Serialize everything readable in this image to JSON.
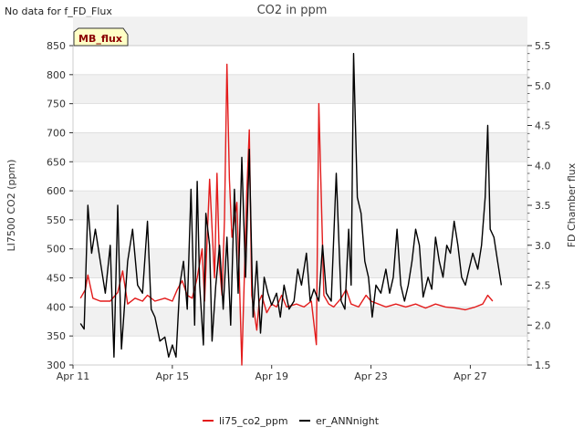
{
  "note": "No data for f_FD_Flux",
  "badge": "MB_flux",
  "colors": {
    "band": "#f1f1f1",
    "grid": "#dcdcdc",
    "series1": "#e31b1b",
    "series2": "#000000",
    "badge_fill": "#ffffc6",
    "badge_text": "#8b0000"
  },
  "chart_data": {
    "type": "line",
    "title": "CO2 in ppm",
    "ylabel": "LI7500 CO2 (ppm)",
    "y2label": "FD Chamber flux",
    "xlim": [
      11,
      29.3
    ],
    "ylim": [
      300,
      850
    ],
    "y2lim": [
      1.5,
      5.5
    ],
    "xticks": [
      {
        "label": "Apr 11",
        "value": 11
      },
      {
        "label": "Apr 15",
        "value": 15
      },
      {
        "label": "Apr 19",
        "value": 19
      },
      {
        "label": "Apr 23",
        "value": 23
      },
      {
        "label": "Apr 27",
        "value": 27
      }
    ],
    "yticks": [
      300,
      350,
      400,
      450,
      500,
      550,
      600,
      650,
      700,
      750,
      800,
      850
    ],
    "y2ticks": [
      "1.5",
      "2.0",
      "2.5",
      "3.0",
      "3.5",
      "4.0",
      "4.5",
      "5.0",
      "5.5"
    ],
    "legend": {
      "placement": "bottom-center"
    },
    "series": [
      {
        "name": "li75_co2_ppm",
        "axis": "left",
        "color": "#e31b1b",
        "points": [
          [
            11.3,
            415
          ],
          [
            11.5,
            430
          ],
          [
            11.6,
            455
          ],
          [
            11.8,
            415
          ],
          [
            12.1,
            410
          ],
          [
            12.5,
            410
          ],
          [
            12.8,
            425
          ],
          [
            13.0,
            462
          ],
          [
            13.2,
            405
          ],
          [
            13.5,
            415
          ],
          [
            13.8,
            410
          ],
          [
            14.0,
            420
          ],
          [
            14.3,
            410
          ],
          [
            14.7,
            415
          ],
          [
            15.0,
            410
          ],
          [
            15.2,
            430
          ],
          [
            15.4,
            445
          ],
          [
            15.6,
            420
          ],
          [
            15.8,
            415
          ],
          [
            16.0,
            450
          ],
          [
            16.2,
            500
          ],
          [
            16.3,
            410
          ],
          [
            16.5,
            620
          ],
          [
            16.7,
            450
          ],
          [
            16.8,
            630
          ],
          [
            16.9,
            470
          ],
          [
            17.0,
            420
          ],
          [
            17.1,
            550
          ],
          [
            17.2,
            818
          ],
          [
            17.3,
            620
          ],
          [
            17.4,
            520
          ],
          [
            17.6,
            580
          ],
          [
            17.7,
            450
          ],
          [
            17.8,
            300
          ],
          [
            18.0,
            600
          ],
          [
            18.1,
            705
          ],
          [
            18.2,
            420
          ],
          [
            18.4,
            360
          ],
          [
            18.5,
            410
          ],
          [
            18.6,
            420
          ],
          [
            18.8,
            390
          ],
          [
            19.0,
            405
          ],
          [
            19.2,
            400
          ],
          [
            19.4,
            420
          ],
          [
            19.6,
            400
          ],
          [
            20.0,
            405
          ],
          [
            20.3,
            400
          ],
          [
            20.6,
            410
          ],
          [
            20.8,
            335
          ],
          [
            20.9,
            750
          ],
          [
            21.1,
            420
          ],
          [
            21.3,
            405
          ],
          [
            21.5,
            400
          ],
          [
            21.8,
            415
          ],
          [
            22.0,
            430
          ],
          [
            22.2,
            405
          ],
          [
            22.5,
            400
          ],
          [
            22.8,
            420
          ],
          [
            23.0,
            410
          ],
          [
            23.3,
            405
          ],
          [
            23.6,
            400
          ],
          [
            24.0,
            405
          ],
          [
            24.4,
            400
          ],
          [
            24.8,
            405
          ],
          [
            25.2,
            398
          ],
          [
            25.6,
            405
          ],
          [
            26.0,
            400
          ],
          [
            26.4,
            398
          ],
          [
            26.8,
            395
          ],
          [
            27.2,
            400
          ],
          [
            27.5,
            405
          ],
          [
            27.7,
            420
          ],
          [
            27.9,
            410
          ]
        ]
      },
      {
        "name": "er_ANNnight",
        "axis": "right",
        "color": "#000000",
        "points": [
          [
            11.3,
            2.02
          ],
          [
            11.45,
            1.95
          ],
          [
            11.6,
            3.5
          ],
          [
            11.75,
            2.9
          ],
          [
            11.9,
            3.2
          ],
          [
            12.1,
            2.8
          ],
          [
            12.3,
            2.4
          ],
          [
            12.5,
            3.0
          ],
          [
            12.65,
            1.6
          ],
          [
            12.8,
            3.5
          ],
          [
            12.95,
            1.7
          ],
          [
            13.2,
            2.8
          ],
          [
            13.4,
            3.2
          ],
          [
            13.6,
            2.5
          ],
          [
            13.8,
            2.4
          ],
          [
            14.0,
            3.3
          ],
          [
            14.15,
            2.2
          ],
          [
            14.3,
            2.1
          ],
          [
            14.5,
            1.8
          ],
          [
            14.7,
            1.85
          ],
          [
            14.85,
            1.6
          ],
          [
            15.0,
            1.75
          ],
          [
            15.15,
            1.6
          ],
          [
            15.3,
            2.5
          ],
          [
            15.45,
            2.8
          ],
          [
            15.6,
            2.2
          ],
          [
            15.75,
            3.7
          ],
          [
            15.9,
            2.0
          ],
          [
            16.0,
            3.8
          ],
          [
            16.1,
            2.5
          ],
          [
            16.25,
            1.75
          ],
          [
            16.35,
            3.4
          ],
          [
            16.5,
            3.0
          ],
          [
            16.6,
            1.8
          ],
          [
            16.75,
            2.5
          ],
          [
            16.9,
            3.0
          ],
          [
            17.05,
            2.2
          ],
          [
            17.2,
            3.1
          ],
          [
            17.35,
            2.0
          ],
          [
            17.5,
            3.7
          ],
          [
            17.65,
            2.4
          ],
          [
            17.8,
            4.1
          ],
          [
            17.95,
            2.6
          ],
          [
            18.1,
            4.2
          ],
          [
            18.25,
            2.1
          ],
          [
            18.4,
            2.8
          ],
          [
            18.55,
            1.9
          ],
          [
            18.7,
            2.6
          ],
          [
            18.85,
            2.4
          ],
          [
            19.0,
            2.25
          ],
          [
            19.2,
            2.4
          ],
          [
            19.35,
            2.1
          ],
          [
            19.5,
            2.5
          ],
          [
            19.7,
            2.2
          ],
          [
            19.9,
            2.3
          ],
          [
            20.05,
            2.7
          ],
          [
            20.2,
            2.5
          ],
          [
            20.4,
            2.9
          ],
          [
            20.55,
            2.3
          ],
          [
            20.7,
            2.45
          ],
          [
            20.9,
            2.3
          ],
          [
            21.05,
            3.0
          ],
          [
            21.2,
            2.4
          ],
          [
            21.4,
            2.3
          ],
          [
            21.6,
            3.9
          ],
          [
            21.8,
            2.3
          ],
          [
            21.95,
            2.2
          ],
          [
            22.1,
            3.2
          ],
          [
            22.2,
            2.5
          ],
          [
            22.3,
            5.4
          ],
          [
            22.45,
            3.6
          ],
          [
            22.6,
            3.4
          ],
          [
            22.75,
            2.8
          ],
          [
            22.9,
            2.6
          ],
          [
            23.05,
            2.1
          ],
          [
            23.2,
            2.5
          ],
          [
            23.4,
            2.4
          ],
          [
            23.6,
            2.7
          ],
          [
            23.75,
            2.4
          ],
          [
            23.9,
            2.6
          ],
          [
            24.05,
            3.2
          ],
          [
            24.2,
            2.5
          ],
          [
            24.35,
            2.3
          ],
          [
            24.5,
            2.5
          ],
          [
            24.65,
            2.8
          ],
          [
            24.8,
            3.2
          ],
          [
            24.95,
            3.0
          ],
          [
            25.1,
            2.35
          ],
          [
            25.3,
            2.6
          ],
          [
            25.45,
            2.45
          ],
          [
            25.6,
            3.1
          ],
          [
            25.75,
            2.8
          ],
          [
            25.9,
            2.6
          ],
          [
            26.05,
            3.0
          ],
          [
            26.2,
            2.9
          ],
          [
            26.35,
            3.3
          ],
          [
            26.5,
            3.0
          ],
          [
            26.65,
            2.6
          ],
          [
            26.8,
            2.5
          ],
          [
            26.95,
            2.7
          ],
          [
            27.1,
            2.9
          ],
          [
            27.3,
            2.7
          ],
          [
            27.45,
            3.0
          ],
          [
            27.6,
            3.6
          ],
          [
            27.7,
            4.5
          ],
          [
            27.8,
            3.2
          ],
          [
            27.95,
            3.1
          ],
          [
            28.1,
            2.8
          ],
          [
            28.25,
            2.5
          ]
        ]
      }
    ]
  }
}
